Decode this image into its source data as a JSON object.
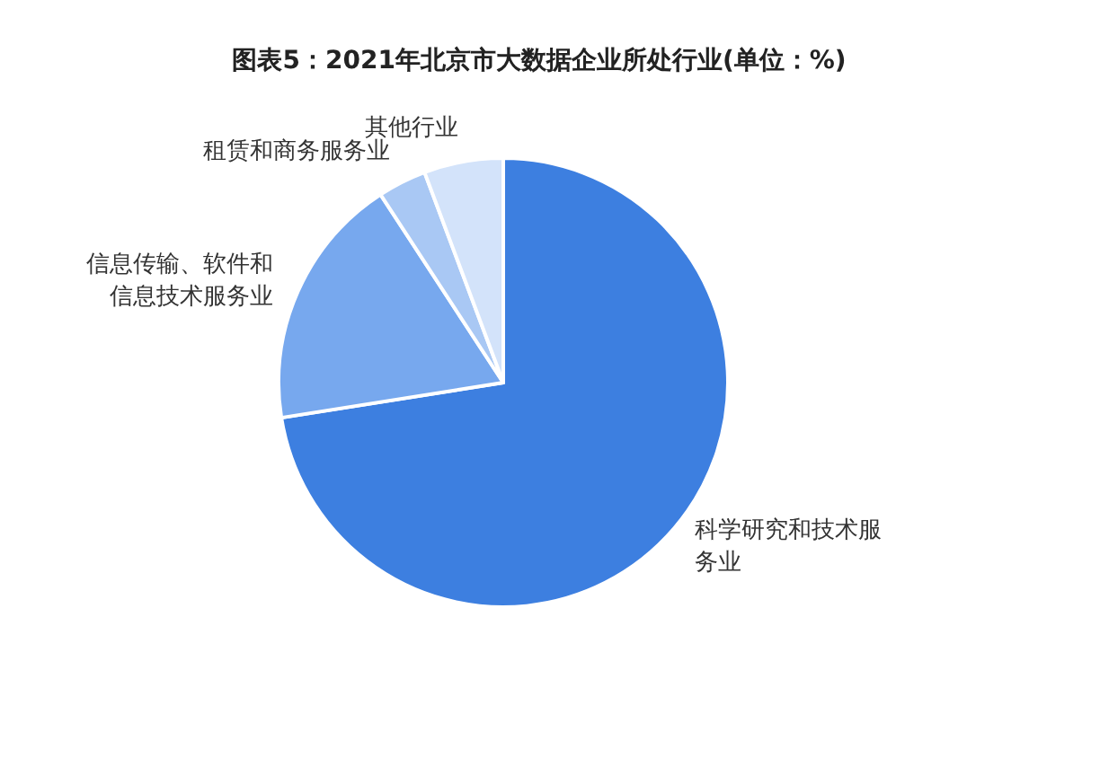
{
  "chart_data": {
    "type": "pie",
    "title": "图表5：2021年北京市大数据企业所处行业(单位：%)",
    "categories": [
      "科学研究和技术服务业",
      "信息传输、软件和信息技术服务业",
      "租赁和商务服务业",
      "其他行业"
    ],
    "values": [
      72.5,
      18.3,
      3.5,
      5.7
    ],
    "colors": [
      "#3d7fe0",
      "#77a8ee",
      "#a9c8f4",
      "#d3e3fa"
    ]
  }
}
